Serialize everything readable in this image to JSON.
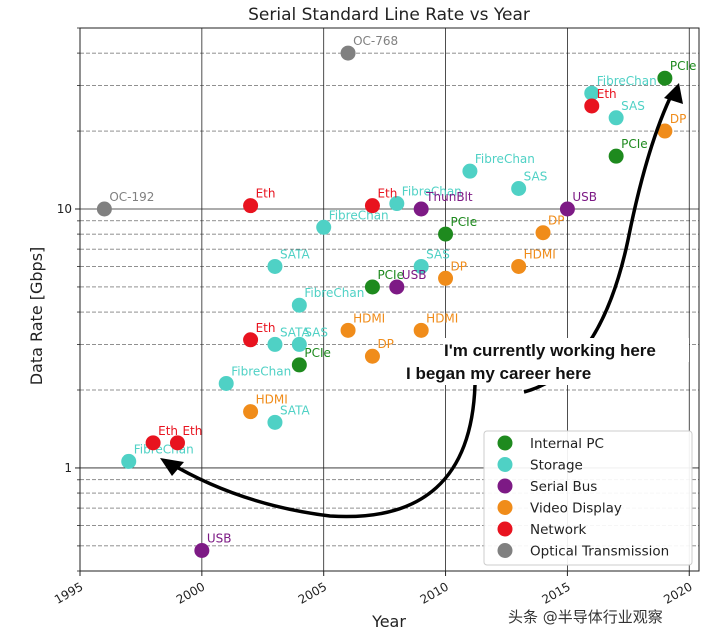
{
  "chart_data": {
    "type": "scatter",
    "title": "Serial Standard Line Rate vs Year",
    "xlabel": "Year",
    "ylabel": "Data Rate [Gbps]",
    "xlim": [
      1995,
      2020.4
    ],
    "ylim": [
      0.4,
      50
    ],
    "yscale": "log",
    "grid": true,
    "legend_position": "bottom-right",
    "x_ticks": [
      "1995",
      "2000",
      "2005",
      "2010",
      "2015",
      "2020"
    ],
    "y_ticks": [
      "1",
      "10"
    ],
    "colors": {
      "Internal PC": "#1e8a1e",
      "Storage": "#4fd1c5",
      "Serial Bus": "#7d1a85",
      "Video Display": "#f08c1a",
      "Network": "#e8131f",
      "Optical Transmission": "#808080"
    },
    "series": [
      {
        "name": "Internal PC",
        "points": [
          {
            "x": 2004,
            "y": 2.5,
            "label": "PCIe"
          },
          {
            "x": 2007,
            "y": 5.0,
            "label": "PCIe"
          },
          {
            "x": 2010,
            "y": 8.0,
            "label": "PCIe"
          },
          {
            "x": 2017,
            "y": 16.0,
            "label": "PCIe"
          },
          {
            "x": 2019,
            "y": 32.0,
            "label": "PCIe"
          }
        ]
      },
      {
        "name": "Storage",
        "points": [
          {
            "x": 1997,
            "y": 1.06,
            "label": "FibreChan"
          },
          {
            "x": 2001,
            "y": 2.12,
            "label": "FibreChan"
          },
          {
            "x": 2003,
            "y": 1.5,
            "label": "SATA"
          },
          {
            "x": 2003,
            "y": 3.0,
            "label": "SATA"
          },
          {
            "x": 2003,
            "y": 6.0,
            "label": "SATA"
          },
          {
            "x": 2004,
            "y": 3.0,
            "label": "SAS"
          },
          {
            "x": 2004,
            "y": 4.25,
            "label": "FibreChan"
          },
          {
            "x": 2005,
            "y": 8.5,
            "label": "FibreChan"
          },
          {
            "x": 2008,
            "y": 10.5,
            "label": "FibreChan"
          },
          {
            "x": 2009,
            "y": 6.0,
            "label": "SAS"
          },
          {
            "x": 2011,
            "y": 14.0,
            "label": "FibreChan"
          },
          {
            "x": 2013,
            "y": 12.0,
            "label": "SAS"
          },
          {
            "x": 2016,
            "y": 28.0,
            "label": "FibreChan"
          },
          {
            "x": 2017,
            "y": 22.5,
            "label": "SAS"
          }
        ]
      },
      {
        "name": "Serial Bus",
        "points": [
          {
            "x": 2000,
            "y": 0.48,
            "label": "USB"
          },
          {
            "x": 2008,
            "y": 5.0,
            "label": "USB"
          },
          {
            "x": 2009,
            "y": 10.0,
            "label": "ThunBlt"
          },
          {
            "x": 2015,
            "y": 10.0,
            "label": "USB"
          }
        ]
      },
      {
        "name": "Video Display",
        "points": [
          {
            "x": 2002,
            "y": 1.65,
            "label": "HDMI"
          },
          {
            "x": 2006,
            "y": 3.4,
            "label": "HDMI"
          },
          {
            "x": 2007,
            "y": 2.7,
            "label": "DP"
          },
          {
            "x": 2009,
            "y": 3.4,
            "label": "HDMI"
          },
          {
            "x": 2010,
            "y": 5.4,
            "label": "DP"
          },
          {
            "x": 2013,
            "y": 6.0,
            "label": "HDMI"
          },
          {
            "x": 2014,
            "y": 8.1,
            "label": "DP"
          },
          {
            "x": 2019,
            "y": 20.0,
            "label": "DP"
          }
        ]
      },
      {
        "name": "Network",
        "points": [
          {
            "x": 1998,
            "y": 1.25,
            "label": "Eth"
          },
          {
            "x": 1999,
            "y": 1.25,
            "label": "Eth"
          },
          {
            "x": 2002,
            "y": 3.125,
            "label": "Eth"
          },
          {
            "x": 2002,
            "y": 10.3,
            "label": "Eth"
          },
          {
            "x": 2007,
            "y": 10.3,
            "label": "Eth"
          },
          {
            "x": 2016,
            "y": 25.0,
            "label": "Eth"
          }
        ]
      },
      {
        "name": "Optical Transmission",
        "points": [
          {
            "x": 1996,
            "y": 10.0,
            "label": "OC-192"
          },
          {
            "x": 2006,
            "y": 40.0,
            "label": "OC-768"
          }
        ]
      }
    ],
    "annotations": [
      "I'm currently working here",
      "I began my career here"
    ]
  },
  "watermark": "头条 @半导体行业观察"
}
